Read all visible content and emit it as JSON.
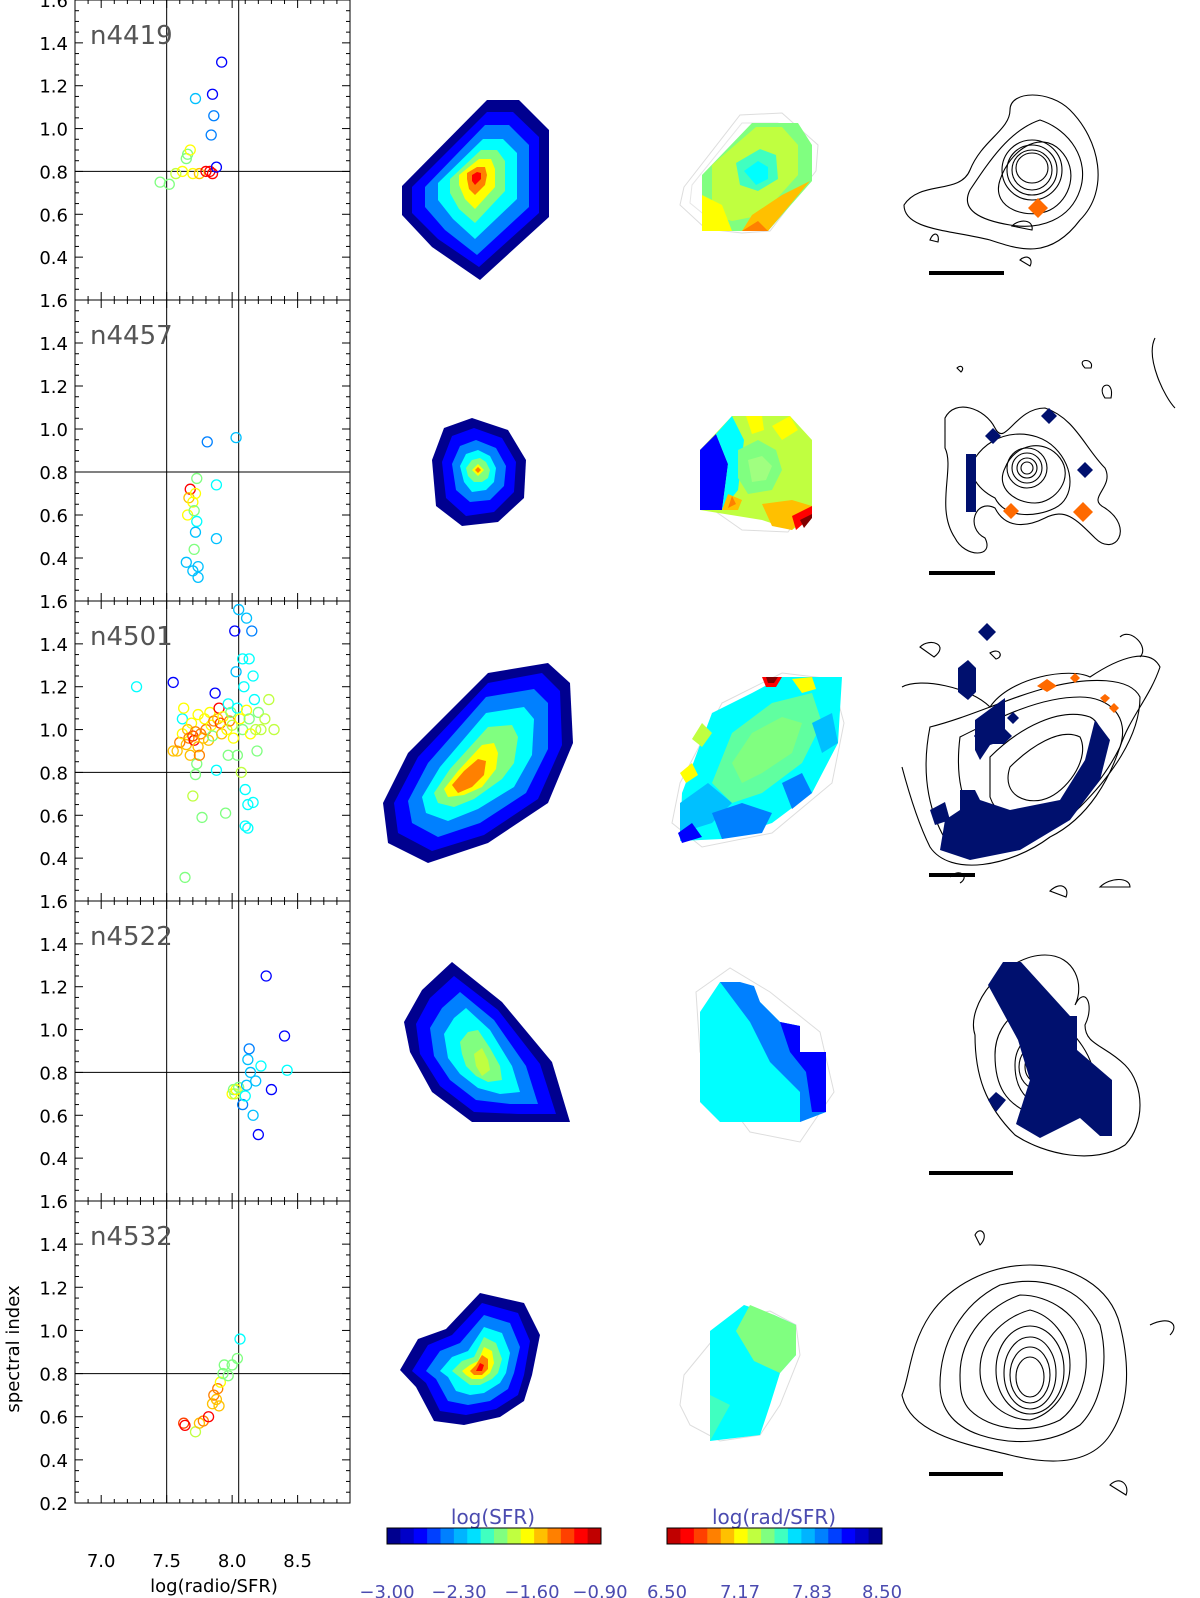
{
  "figure": {
    "ylabel": "spectral index",
    "xlabel": "log(radio/SFR)",
    "colorbar_sfr": {
      "title": "log(SFR)",
      "ticks": [
        "−3.00",
        "−2.30",
        "−1.60",
        "−0.90"
      ],
      "min": -3.0,
      "max": -0.9
    },
    "colorbar_ratio": {
      "title": "log(rad/SFR)",
      "ticks": [
        "6.50",
        "7.17",
        "7.83",
        "8.50"
      ],
      "min": 6.5,
      "max": 8.5
    },
    "colormap": [
      "#00008f",
      "#0000ff",
      "#0080ff",
      "#00ffff",
      "#80ff80",
      "#ffff00",
      "#ff8000",
      "#ff0000",
      "#800000"
    ]
  },
  "chart_data": [
    {
      "type": "scatter",
      "panel": "n4419",
      "title": "n4419",
      "xlim": [
        6.8,
        8.9
      ],
      "ylim": [
        0.2,
        1.6
      ],
      "ref_lines": {
        "x": [
          7.5,
          8.05
        ],
        "y": 0.8
      },
      "points": [
        {
          "x": 7.45,
          "y": 0.75,
          "c": "#80ff80"
        },
        {
          "x": 7.52,
          "y": 0.74,
          "c": "#80ff80"
        },
        {
          "x": 7.57,
          "y": 0.79,
          "c": "#c0ff40"
        },
        {
          "x": 7.62,
          "y": 0.8,
          "c": "#ffff00"
        },
        {
          "x": 7.65,
          "y": 0.86,
          "c": "#80ff80"
        },
        {
          "x": 7.66,
          "y": 0.88,
          "c": "#80ff80"
        },
        {
          "x": 7.68,
          "y": 0.9,
          "c": "#ffff00"
        },
        {
          "x": 7.7,
          "y": 0.79,
          "c": "#ffff00"
        },
        {
          "x": 7.72,
          "y": 1.14,
          "c": "#00c0ff"
        },
        {
          "x": 7.75,
          "y": 0.79,
          "c": "#ffc000"
        },
        {
          "x": 7.8,
          "y": 0.8,
          "c": "#ff0000"
        },
        {
          "x": 7.83,
          "y": 0.8,
          "c": "#ff0000"
        },
        {
          "x": 7.85,
          "y": 0.79,
          "c": "#ff0000"
        },
        {
          "x": 7.84,
          "y": 0.97,
          "c": "#0080ff"
        },
        {
          "x": 7.85,
          "y": 1.16,
          "c": "#0000ff"
        },
        {
          "x": 7.86,
          "y": 1.06,
          "c": "#0080ff"
        },
        {
          "x": 7.88,
          "y": 0.82,
          "c": "#0000ff"
        },
        {
          "x": 7.92,
          "y": 1.31,
          "c": "#0000ff"
        }
      ]
    },
    {
      "type": "scatter",
      "panel": "n4457",
      "title": "n4457",
      "xlim": [
        6.8,
        8.9
      ],
      "ylim": [
        0.2,
        1.6
      ],
      "ref_lines": {
        "x": [
          7.5,
          8.05
        ],
        "y": 0.8
      },
      "points": [
        {
          "x": 7.65,
          "y": 0.38,
          "c": "#00c0ff"
        },
        {
          "x": 7.68,
          "y": 0.72,
          "c": "#ff0000"
        },
        {
          "x": 7.67,
          "y": 0.68,
          "c": "#ffc000"
        },
        {
          "x": 7.66,
          "y": 0.6,
          "c": "#ffff00"
        },
        {
          "x": 7.7,
          "y": 0.66,
          "c": "#ffff00"
        },
        {
          "x": 7.72,
          "y": 0.7,
          "c": "#ffff00"
        },
        {
          "x": 7.73,
          "y": 0.77,
          "c": "#80ff80"
        },
        {
          "x": 7.71,
          "y": 0.62,
          "c": "#80ff80"
        },
        {
          "x": 7.73,
          "y": 0.57,
          "c": "#00ffff"
        },
        {
          "x": 7.72,
          "y": 0.52,
          "c": "#00c0ff"
        },
        {
          "x": 7.71,
          "y": 0.44,
          "c": "#80ff80"
        },
        {
          "x": 7.7,
          "y": 0.34,
          "c": "#00c0ff"
        },
        {
          "x": 7.74,
          "y": 0.31,
          "c": "#00c0ff"
        },
        {
          "x": 7.74,
          "y": 0.36,
          "c": "#00c0ff"
        },
        {
          "x": 7.81,
          "y": 0.94,
          "c": "#0080ff"
        },
        {
          "x": 7.88,
          "y": 0.74,
          "c": "#00ffff"
        },
        {
          "x": 7.88,
          "y": 0.49,
          "c": "#00c0ff"
        },
        {
          "x": 8.03,
          "y": 0.96,
          "c": "#00c0ff"
        }
      ]
    },
    {
      "type": "scatter",
      "panel": "n4501",
      "title": "n4501",
      "xlim": [
        6.8,
        8.9
      ],
      "ylim": [
        0.2,
        1.6
      ],
      "ref_lines": {
        "x": [
          7.5,
          8.05
        ],
        "y": 0.8
      },
      "points": [
        {
          "x": 7.27,
          "y": 1.2,
          "c": "#00ffff"
        },
        {
          "x": 7.55,
          "y": 1.22,
          "c": "#0000ff"
        },
        {
          "x": 7.55,
          "y": 0.9,
          "c": "#ffc000"
        },
        {
          "x": 7.58,
          "y": 0.9,
          "c": "#ffc000"
        },
        {
          "x": 7.6,
          "y": 0.94,
          "c": "#ff8000"
        },
        {
          "x": 7.62,
          "y": 1.05,
          "c": "#00ffff"
        },
        {
          "x": 7.62,
          "y": 0.98,
          "c": "#ffff00"
        },
        {
          "x": 7.63,
          "y": 1.1,
          "c": "#ffff00"
        },
        {
          "x": 7.64,
          "y": 0.31,
          "c": "#80ff80"
        },
        {
          "x": 7.65,
          "y": 0.93,
          "c": "#ffc000"
        },
        {
          "x": 7.66,
          "y": 1.0,
          "c": "#ffc000"
        },
        {
          "x": 7.67,
          "y": 0.96,
          "c": "#ff8000"
        },
        {
          "x": 7.68,
          "y": 0.88,
          "c": "#ffc000"
        },
        {
          "x": 7.69,
          "y": 1.03,
          "c": "#ffff00"
        },
        {
          "x": 7.7,
          "y": 0.69,
          "c": "#c0ff40"
        },
        {
          "x": 7.7,
          "y": 0.97,
          "c": "#ff4000"
        },
        {
          "x": 7.71,
          "y": 0.95,
          "c": "#ff0000"
        },
        {
          "x": 7.72,
          "y": 0.99,
          "c": "#ff8000"
        },
        {
          "x": 7.72,
          "y": 0.79,
          "c": "#80ff80"
        },
        {
          "x": 7.73,
          "y": 0.84,
          "c": "#80ff80"
        },
        {
          "x": 7.74,
          "y": 1.07,
          "c": "#ffff00"
        },
        {
          "x": 7.74,
          "y": 0.92,
          "c": "#ffc000"
        },
        {
          "x": 7.75,
          "y": 0.88,
          "c": "#ff8000"
        },
        {
          "x": 7.76,
          "y": 0.98,
          "c": "#ff8000"
        },
        {
          "x": 7.77,
          "y": 0.59,
          "c": "#80ff80"
        },
        {
          "x": 7.78,
          "y": 0.96,
          "c": "#ffc000"
        },
        {
          "x": 7.79,
          "y": 1.05,
          "c": "#ffff00"
        },
        {
          "x": 7.8,
          "y": 1.0,
          "c": "#ff8000"
        },
        {
          "x": 7.82,
          "y": 0.95,
          "c": "#ffc000"
        },
        {
          "x": 7.83,
          "y": 1.08,
          "c": "#ffff00"
        },
        {
          "x": 7.84,
          "y": 1.02,
          "c": "#ffff00"
        },
        {
          "x": 7.85,
          "y": 0.97,
          "c": "#80ff80"
        },
        {
          "x": 7.86,
          "y": 1.04,
          "c": "#ff8000"
        },
        {
          "x": 7.87,
          "y": 1.17,
          "c": "#0000ff"
        },
        {
          "x": 7.88,
          "y": 0.81,
          "c": "#00ffff"
        },
        {
          "x": 7.89,
          "y": 1.05,
          "c": "#ffc000"
        },
        {
          "x": 7.9,
          "y": 1.1,
          "c": "#ff0000"
        },
        {
          "x": 7.91,
          "y": 1.03,
          "c": "#ff4000"
        },
        {
          "x": 7.92,
          "y": 0.98,
          "c": "#ffc000"
        },
        {
          "x": 7.93,
          "y": 1.06,
          "c": "#ffff00"
        },
        {
          "x": 7.95,
          "y": 0.61,
          "c": "#80ff80"
        },
        {
          "x": 7.96,
          "y": 1.0,
          "c": "#ffff00"
        },
        {
          "x": 7.97,
          "y": 1.12,
          "c": "#00ffff"
        },
        {
          "x": 7.98,
          "y": 1.04,
          "c": "#ff8000"
        },
        {
          "x": 7.99,
          "y": 1.08,
          "c": "#80ff80"
        },
        {
          "x": 8.0,
          "y": 1.02,
          "c": "#c0ff40"
        },
        {
          "x": 8.01,
          "y": 0.96,
          "c": "#ffff00"
        },
        {
          "x": 8.02,
          "y": 1.46,
          "c": "#0000ff"
        },
        {
          "x": 8.03,
          "y": 1.27,
          "c": "#00c0ff"
        },
        {
          "x": 8.04,
          "y": 1.1,
          "c": "#00ffff"
        },
        {
          "x": 8.04,
          "y": 0.88,
          "c": "#80ff80"
        },
        {
          "x": 8.05,
          "y": 1.56,
          "c": "#00c0ff"
        },
        {
          "x": 8.06,
          "y": 1.05,
          "c": "#ffff00"
        },
        {
          "x": 8.07,
          "y": 0.8,
          "c": "#c0ff40"
        },
        {
          "x": 8.08,
          "y": 1.33,
          "c": "#00ffff"
        },
        {
          "x": 8.08,
          "y": 1.0,
          "c": "#80ff80"
        },
        {
          "x": 8.09,
          "y": 1.2,
          "c": "#00ffff"
        },
        {
          "x": 8.1,
          "y": 0.72,
          "c": "#00ffff"
        },
        {
          "x": 8.1,
          "y": 0.55,
          "c": "#00ffff"
        },
        {
          "x": 8.11,
          "y": 1.52,
          "c": "#00c0ff"
        },
        {
          "x": 8.11,
          "y": 1.09,
          "c": "#ffff00"
        },
        {
          "x": 8.12,
          "y": 0.65,
          "c": "#00ffff"
        },
        {
          "x": 8.12,
          "y": 0.54,
          "c": "#00ffff"
        },
        {
          "x": 8.13,
          "y": 1.33,
          "c": "#00ffff"
        },
        {
          "x": 8.13,
          "y": 1.05,
          "c": "#80ff80"
        },
        {
          "x": 8.14,
          "y": 0.98,
          "c": "#ffff00"
        },
        {
          "x": 8.15,
          "y": 1.46,
          "c": "#0080ff"
        },
        {
          "x": 8.16,
          "y": 1.25,
          "c": "#00ffff"
        },
        {
          "x": 8.16,
          "y": 0.66,
          "c": "#00ffff"
        },
        {
          "x": 8.17,
          "y": 1.14,
          "c": "#00ffff"
        },
        {
          "x": 8.18,
          "y": 1.0,
          "c": "#c0ff40"
        },
        {
          "x": 8.19,
          "y": 0.9,
          "c": "#80ff80"
        },
        {
          "x": 8.2,
          "y": 1.08,
          "c": "#80ff80"
        },
        {
          "x": 8.22,
          "y": 1.0,
          "c": "#c0ff40"
        },
        {
          "x": 8.25,
          "y": 1.05,
          "c": "#c0ff40"
        },
        {
          "x": 8.28,
          "y": 1.14,
          "c": "#c0ff40"
        },
        {
          "x": 8.32,
          "y": 1.0,
          "c": "#c0ff40"
        },
        {
          "x": 7.97,
          "y": 0.88,
          "c": "#80ff80"
        }
      ]
    },
    {
      "type": "scatter",
      "panel": "n4522",
      "title": "n4522",
      "xlim": [
        6.8,
        8.9
      ],
      "ylim": [
        0.2,
        1.6
      ],
      "ref_lines": {
        "x": [
          7.5,
          8.05
        ],
        "y": 0.8
      },
      "points": [
        {
          "x": 8.0,
          "y": 0.7,
          "c": "#ffff00"
        },
        {
          "x": 8.01,
          "y": 0.72,
          "c": "#80ff80"
        },
        {
          "x": 8.02,
          "y": 0.7,
          "c": "#c0ff40"
        },
        {
          "x": 8.03,
          "y": 0.72,
          "c": "#ffff00"
        },
        {
          "x": 8.05,
          "y": 0.73,
          "c": "#80ff80"
        },
        {
          "x": 8.08,
          "y": 0.65,
          "c": "#0080ff"
        },
        {
          "x": 8.1,
          "y": 0.69,
          "c": "#00ffff"
        },
        {
          "x": 8.11,
          "y": 0.74,
          "c": "#00c0ff"
        },
        {
          "x": 8.12,
          "y": 0.86,
          "c": "#00c0ff"
        },
        {
          "x": 8.13,
          "y": 0.91,
          "c": "#0080ff"
        },
        {
          "x": 8.14,
          "y": 0.8,
          "c": "#00c0ff"
        },
        {
          "x": 8.16,
          "y": 0.6,
          "c": "#00c0ff"
        },
        {
          "x": 8.18,
          "y": 0.76,
          "c": "#00c0ff"
        },
        {
          "x": 8.2,
          "y": 0.51,
          "c": "#0000ff"
        },
        {
          "x": 8.22,
          "y": 0.83,
          "c": "#00ffff"
        },
        {
          "x": 8.26,
          "y": 1.25,
          "c": "#0000ff"
        },
        {
          "x": 8.3,
          "y": 0.72,
          "c": "#0000ff"
        },
        {
          "x": 8.4,
          "y": 0.97,
          "c": "#0000ff"
        },
        {
          "x": 8.42,
          "y": 0.81,
          "c": "#00ffff"
        }
      ]
    },
    {
      "type": "scatter",
      "panel": "n4532",
      "title": "n4532",
      "xlim": [
        6.8,
        8.9
      ],
      "ylim": [
        0.2,
        1.6
      ],
      "ref_lines": {
        "x": [
          7.5,
          8.05
        ],
        "y": 0.8
      },
      "points": [
        {
          "x": 7.63,
          "y": 0.57,
          "c": "#ff4000"
        },
        {
          "x": 7.64,
          "y": 0.56,
          "c": "#ff0000"
        },
        {
          "x": 7.72,
          "y": 0.53,
          "c": "#c0ff40"
        },
        {
          "x": 7.75,
          "y": 0.57,
          "c": "#ffc000"
        },
        {
          "x": 7.78,
          "y": 0.58,
          "c": "#ff8000"
        },
        {
          "x": 7.82,
          "y": 0.6,
          "c": "#ff0000"
        },
        {
          "x": 7.85,
          "y": 0.66,
          "c": "#ffc000"
        },
        {
          "x": 7.86,
          "y": 0.7,
          "c": "#ff8000"
        },
        {
          "x": 7.88,
          "y": 0.68,
          "c": "#ffc000"
        },
        {
          "x": 7.9,
          "y": 0.65,
          "c": "#ffc000"
        },
        {
          "x": 7.89,
          "y": 0.73,
          "c": "#ff8000"
        },
        {
          "x": 7.91,
          "y": 0.76,
          "c": "#ffff00"
        },
        {
          "x": 7.93,
          "y": 0.8,
          "c": "#80ff80"
        },
        {
          "x": 7.94,
          "y": 0.84,
          "c": "#80ff80"
        },
        {
          "x": 7.97,
          "y": 0.79,
          "c": "#80ff80"
        },
        {
          "x": 8.0,
          "y": 0.84,
          "c": "#80ff80"
        },
        {
          "x": 8.04,
          "y": 0.87,
          "c": "#80ff80"
        },
        {
          "x": 8.06,
          "y": 0.96,
          "c": "#00ffff"
        }
      ]
    }
  ]
}
